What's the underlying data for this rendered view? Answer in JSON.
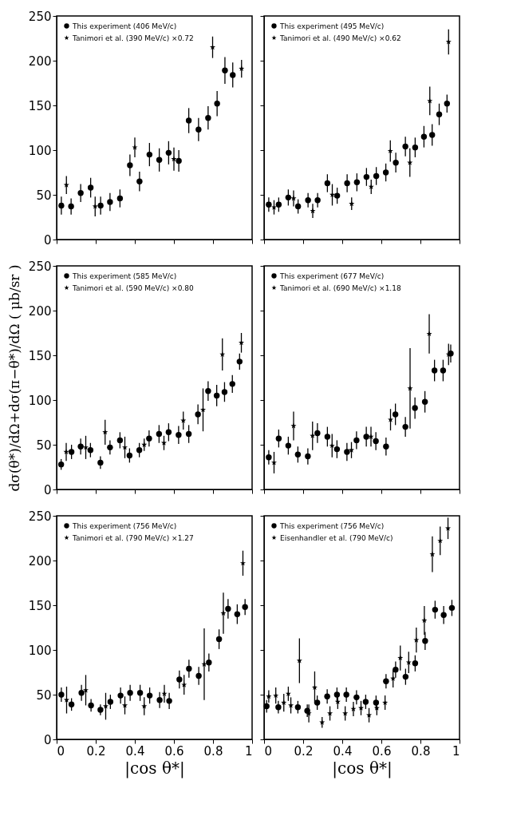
{
  "chart_data": [
    {
      "type": "scatter",
      "xlim": [
        0,
        1
      ],
      "xticks": [
        0,
        0.2,
        0.4,
        0.6,
        0.8,
        1
      ],
      "ylim": [
        0,
        250
      ],
      "yticks": [
        0,
        50,
        100,
        150,
        200,
        250
      ],
      "legend": "top left",
      "tick_labels": "y",
      "series": [
        {
          "name": "This experiment (406 MeV/c)",
          "color": "#000000",
          "marker": "circle",
          "x": [
            0.024,
            0.074,
            0.123,
            0.174,
            0.225,
            0.273,
            0.324,
            0.375,
            0.424,
            0.475,
            0.525,
            0.573,
            0.625,
            0.676,
            0.726,
            0.775,
            0.821,
            0.861,
            0.901
          ],
          "values": [
            38,
            37,
            52,
            58,
            38,
            42,
            46,
            83,
            65,
            95,
            89,
            97,
            88,
            133,
            123,
            136,
            152,
            189,
            184
          ],
          "errors": [
            10,
            9,
            10,
            11,
            10,
            10,
            10,
            12,
            11,
            13,
            13,
            13,
            12,
            14,
            13,
            13,
            14,
            15,
            14
          ]
        },
        {
          "name": "Tanimori et al. (390 MeV/c) ×0.72",
          "color": "#000000",
          "marker": "star",
          "x": [
            0.05,
            0.197,
            0.4,
            0.6,
            0.798,
            0.946
          ],
          "values": [
            61,
            37,
            103,
            90,
            215,
            191
          ],
          "errors": [
            10,
            11,
            11,
            13,
            12,
            10
          ]
        }
      ]
    },
    {
      "type": "scatter",
      "xlim": [
        0,
        1
      ],
      "xticks": [
        0,
        0.2,
        0.4,
        0.6,
        0.8,
        1
      ],
      "ylim": [
        0,
        250
      ],
      "yticks": [
        0,
        50,
        100,
        150,
        200,
        250
      ],
      "legend": "top left",
      "tick_labels": false,
      "series": [
        {
          "name": "This experiment (495 MeV/c)",
          "color": "#000000",
          "marker": "circle",
          "x": [
            0.024,
            0.075,
            0.124,
            0.174,
            0.225,
            0.274,
            0.324,
            0.374,
            0.425,
            0.475,
            0.524,
            0.574,
            0.623,
            0.674,
            0.723,
            0.773,
            0.818,
            0.86,
            0.896,
            0.936
          ],
          "values": [
            39,
            39,
            47,
            37,
            44,
            44,
            63,
            49,
            63,
            64,
            70,
            71,
            75,
            86,
            104,
            103,
            115,
            117,
            140,
            152
          ],
          "errors": [
            8,
            8,
            9,
            8,
            8,
            8,
            10,
            9,
            10,
            10,
            10,
            10,
            10,
            11,
            11,
            11,
            12,
            12,
            12,
            10
          ]
        },
        {
          "name": "Tanimori et al. (490 MeV/c) ×0.62",
          "color": "#000000",
          "marker": "star",
          "x": [
            0.051,
            0.151,
            0.249,
            0.349,
            0.448,
            0.548,
            0.646,
            0.746,
            0.848,
            0.944
          ],
          "values": [
            36,
            46,
            32,
            50,
            40,
            59,
            99,
            86,
            155,
            221
          ],
          "errors": [
            8,
            9,
            8,
            12,
            7,
            8,
            12,
            16,
            16,
            14
          ]
        }
      ]
    },
    {
      "type": "scatter",
      "ylabel": "dσ(θ*)/dΩ+dσ(π−θ*)/dΩ  ( μb/sr )",
      "xlim": [
        0,
        1
      ],
      "xticks": [
        0,
        0.2,
        0.4,
        0.6,
        0.8,
        1
      ],
      "ylim": [
        0,
        250
      ],
      "yticks": [
        0,
        50,
        100,
        150,
        200,
        250
      ],
      "legend": "top left",
      "tick_labels": "y",
      "series": [
        {
          "name": "This experiment (585 MeV/c)",
          "color": "#000000",
          "marker": "circle",
          "x": [
            0.023,
            0.076,
            0.123,
            0.173,
            0.224,
            0.273,
            0.324,
            0.373,
            0.423,
            0.473,
            0.524,
            0.573,
            0.624,
            0.676,
            0.723,
            0.775,
            0.819,
            0.859,
            0.899,
            0.936
          ],
          "values": [
            28,
            42,
            48,
            44,
            30,
            47,
            55,
            38,
            44,
            57,
            62,
            64,
            61,
            62,
            84,
            110,
            105,
            109,
            118,
            143
          ],
          "errors": [
            6,
            8,
            9,
            8,
            7,
            8,
            9,
            8,
            8,
            9,
            10,
            10,
            10,
            10,
            11,
            11,
            12,
            11,
            10,
            9
          ]
        },
        {
          "name": "Tanimori et al. (590 MeV/c) ×0.80",
          "color": "#000000",
          "marker": "star",
          "x": [
            0.049,
            0.149,
            0.248,
            0.349,
            0.448,
            0.549,
            0.648,
            0.749,
            0.848,
            0.945
          ],
          "values": [
            42,
            47,
            64,
            47,
            50,
            52,
            77,
            89,
            151,
            164
          ],
          "errors": [
            10,
            13,
            14,
            12,
            7,
            8,
            10,
            24,
            18,
            11
          ]
        }
      ]
    },
    {
      "type": "scatter",
      "xlim": [
        0,
        1
      ],
      "xticks": [
        0,
        0.2,
        0.4,
        0.6,
        0.8,
        1
      ],
      "ylim": [
        0,
        250
      ],
      "yticks": [
        0,
        50,
        100,
        150,
        200,
        250
      ],
      "legend": "top left",
      "tick_labels": false,
      "series": [
        {
          "name": "This experiment (677 MeV/c)",
          "color": "#000000",
          "marker": "circle",
          "x": [
            0.024,
            0.075,
            0.124,
            0.173,
            0.224,
            0.273,
            0.324,
            0.373,
            0.424,
            0.473,
            0.523,
            0.572,
            0.624,
            0.672,
            0.723,
            0.772,
            0.823,
            0.872,
            0.916,
            0.955
          ],
          "values": [
            36,
            57,
            49,
            39,
            37,
            63,
            59,
            45,
            42,
            55,
            59,
            54,
            48,
            84,
            70,
            91,
            98,
            133,
            133,
            152
          ],
          "errors": [
            8,
            10,
            10,
            9,
            9,
            11,
            11,
            10,
            10,
            10,
            11,
            10,
            10,
            12,
            11,
            12,
            12,
            12,
            12,
            10
          ]
        },
        {
          "name": "Tanimori et al. (690 MeV/c) ×1.18",
          "color": "#000000",
          "marker": "star",
          "x": [
            0.051,
            0.151,
            0.248,
            0.348,
            0.447,
            0.547,
            0.647,
            0.747,
            0.845,
            0.944
          ],
          "values": [
            30,
            71,
            60,
            49,
            44,
            59,
            78,
            113,
            174,
            151
          ],
          "errors": [
            12,
            16,
            16,
            13,
            9,
            11,
            12,
            45,
            22,
            12
          ]
        }
      ]
    },
    {
      "type": "scatter",
      "xlabel": "|cos θ*|",
      "xlim": [
        0,
        1
      ],
      "xticks": [
        0,
        0.2,
        0.4,
        0.6,
        0.8,
        1
      ],
      "ylim": [
        0,
        250
      ],
      "yticks": [
        0,
        50,
        100,
        150,
        200,
        250
      ],
      "legend": "top left",
      "series": [
        {
          "name": "This experiment (756 MeV/c)",
          "color": "#000000",
          "marker": "circle",
          "x": [
            0.024,
            0.076,
            0.127,
            0.176,
            0.224,
            0.275,
            0.327,
            0.376,
            0.427,
            0.476,
            0.527,
            0.576,
            0.628,
            0.677,
            0.727,
            0.779,
            0.831,
            0.877,
            0.924,
            0.964
          ],
          "values": [
            50,
            39,
            52,
            38,
            33,
            42,
            49,
            52,
            52,
            49,
            44,
            43,
            67,
            79,
            71,
            86,
            112,
            146,
            140,
            148
          ],
          "errors": [
            8,
            7,
            9,
            7,
            6,
            8,
            9,
            9,
            9,
            9,
            9,
            9,
            10,
            10,
            10,
            10,
            11,
            11,
            11,
            9
          ]
        },
        {
          "name": "Tanimori et al. (790 MeV/c) ×1.27",
          "color": "#000000",
          "marker": "star",
          "x": [
            0.051,
            0.149,
            0.251,
            0.349,
            0.448,
            0.551,
            0.652,
            0.755,
            0.853,
            0.953
          ],
          "values": [
            44,
            55,
            37,
            38,
            37,
            51,
            61,
            84,
            141,
            197
          ],
          "errors": [
            15,
            17,
            15,
            10,
            10,
            10,
            11,
            40,
            23,
            14
          ]
        }
      ]
    },
    {
      "type": "scatter",
      "xlabel": "|cos θ*|",
      "xlim": [
        0,
        1
      ],
      "xticks": [
        0,
        0.2,
        0.4,
        0.6,
        0.8,
        1
      ],
      "ylim": [
        0,
        250
      ],
      "yticks": [
        0,
        50,
        100,
        150,
        200,
        250
      ],
      "legend": "top left",
      "tick_labels": "x",
      "series": [
        {
          "name": "This experiment (756 MeV/c)",
          "color": "#000000",
          "marker": "circle",
          "x": [
            0.013,
            0.073,
            0.173,
            0.221,
            0.272,
            0.323,
            0.373,
            0.421,
            0.473,
            0.52,
            0.573,
            0.624,
            0.673,
            0.724,
            0.773,
            0.824,
            0.875,
            0.919,
            0.961
          ],
          "values": [
            37,
            36,
            36,
            32,
            41,
            48,
            50,
            50,
            47,
            42,
            41,
            65,
            78,
            70,
            85,
            110,
            145,
            139,
            147
          ],
          "errors": [
            7,
            7,
            7,
            7,
            8,
            8,
            8,
            8,
            8,
            8,
            8,
            8,
            9,
            9,
            9,
            10,
            10,
            10,
            9
          ]
        },
        {
          "name": "Eisenhandler et al. (790 MeV/c)",
          "color": "#000000",
          "marker": "star",
          "x": [
            0.024,
            0.06,
            0.101,
            0.124,
            0.137,
            0.181,
            0.229,
            0.259,
            0.297,
            0.337,
            0.377,
            0.415,
            0.457,
            0.496,
            0.537,
            0.577,
            0.619,
            0.66,
            0.697,
            0.74,
            0.779,
            0.82,
            0.861,
            0.901,
            0.941
          ],
          "values": [
            48,
            49,
            41,
            51,
            38,
            88,
            29,
            58,
            19,
            29,
            42,
            29,
            34,
            35,
            27,
            35,
            41,
            68,
            91,
            86,
            111,
            133,
            207,
            222,
            236
          ],
          "errors": [
            7,
            9,
            10,
            8,
            9,
            25,
            10,
            18,
            6,
            8,
            8,
            8,
            8,
            8,
            8,
            8,
            8,
            10,
            14,
            12,
            14,
            16,
            20,
            16,
            12
          ]
        }
      ]
    }
  ]
}
